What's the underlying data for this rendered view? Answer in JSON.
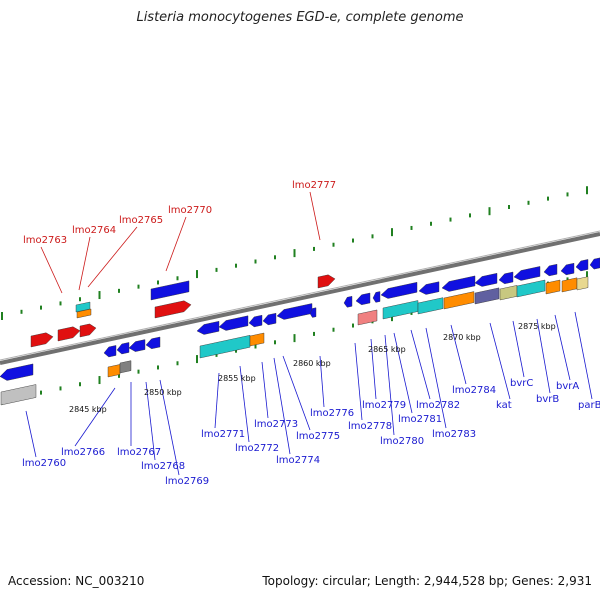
{
  "title": "Listeria monocytogenes EGD-e, complete genome",
  "footer": {
    "accession": "Accession: NC_003210",
    "summary": "Topology: circular; Length: 2,944,528 bp; Genes: 2,931"
  },
  "colors": {
    "forward": "#1010e0",
    "reverse_red": "#e01010",
    "teal": "#20c8c8",
    "orange": "#ff8c00",
    "grey": "#808080",
    "light_grey": "#c0c0c0",
    "slate": "#6060a0",
    "khaki": "#c8c880",
    "pink": "#f08080",
    "tan": "#e8d890",
    "backbone": "#707070",
    "tick": "#208020",
    "label_blue": "#1a1ad0",
    "label_red": "#cc1a1a"
  },
  "kbp_labels": [
    "2845 kbp",
    "2850 kbp",
    "2855 kbp",
    "2860 kbp",
    "2865 kbp",
    "2870 kbp",
    "2875 kbp"
  ],
  "red_labels": [
    "lmo2763",
    "lmo2764",
    "lmo2765",
    "lmo2770",
    "lmo2777"
  ],
  "blue_labels": [
    "lmo2760",
    "lmo2766",
    "lmo2767",
    "lmo2768",
    "lmo2769",
    "lmo2771",
    "lmo2772",
    "lmo2773",
    "lmo2774",
    "lmo2775",
    "lmo2776",
    "lmo2778",
    "lmo2779",
    "lmo2780",
    "lmo2781",
    "lmo2782",
    "lmo2783",
    "lmo2784",
    "kat",
    "bvrC",
    "bvrB",
    "bvrA",
    "parB"
  ]
}
